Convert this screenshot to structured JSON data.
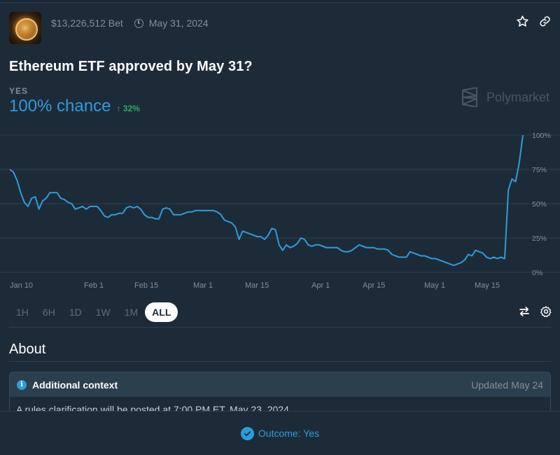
{
  "market": {
    "volume": "$13,226,512 Bet",
    "end_date": "May 31, 2024",
    "title": "Ethereum ETF approved by May 31?",
    "outcome_label": "YES",
    "chance_text": "100% chance",
    "delta_text": "↑ 32%",
    "brand": "Polymarket"
  },
  "chart_data": {
    "type": "line",
    "title": "",
    "xlabel": "",
    "ylabel": "",
    "ylim": [
      0,
      100
    ],
    "y_ticks": [
      "0%",
      "25%",
      "50%",
      "75%",
      "100%"
    ],
    "x_ticks": [
      "Jan 10",
      "Feb 1",
      "Feb 15",
      "Mar 1",
      "Mar 15",
      "Apr 1",
      "Apr 15",
      "May 1",
      "May 15"
    ],
    "grid": true,
    "accent_color": "#2d9cdb",
    "series": [
      {
        "name": "",
        "x": [
          0,
          1,
          2,
          3,
          4,
          5,
          6,
          7,
          8,
          9,
          10,
          11,
          12,
          13,
          14,
          15,
          16,
          17,
          18,
          19,
          20,
          21,
          22,
          23,
          24,
          25,
          26,
          27,
          28,
          29,
          30,
          31,
          32,
          33,
          34,
          35,
          36,
          37,
          38,
          39,
          40,
          41,
          42,
          43,
          44,
          45,
          46,
          47,
          48,
          49,
          50,
          51,
          52,
          53,
          54,
          55,
          56,
          57,
          58,
          59,
          60,
          61,
          62,
          63,
          64,
          65,
          66,
          67,
          68,
          69,
          70,
          71,
          72,
          73,
          74,
          75,
          76,
          77,
          78,
          79,
          80,
          81,
          82,
          83,
          84,
          85,
          86,
          87,
          88,
          89,
          90,
          91,
          92,
          93,
          94,
          95,
          96,
          97,
          98,
          99,
          100,
          101,
          102,
          103,
          104,
          105,
          106,
          107,
          108,
          109,
          110,
          111,
          112,
          113,
          114,
          115,
          116,
          117,
          118,
          119,
          120,
          121,
          122,
          123,
          124,
          125,
          126,
          127,
          128,
          129,
          130,
          131,
          132,
          133,
          134,
          135,
          136,
          137,
          138,
          139,
          140,
          141
        ],
        "values": [
          75,
          73,
          67,
          58,
          51,
          48,
          54,
          55,
          46,
          52,
          54,
          58,
          58,
          58,
          54,
          53,
          51,
          50,
          46,
          47,
          48,
          46,
          48,
          48,
          48,
          45,
          41,
          40,
          42,
          42,
          43,
          43,
          47,
          48,
          47,
          48,
          46,
          42,
          40,
          40,
          39,
          39,
          46,
          47,
          46,
          42,
          42,
          42,
          43,
          44,
          44,
          45,
          45,
          45,
          45,
          45,
          45,
          44,
          42,
          38,
          37,
          36,
          33,
          24,
          30,
          29,
          28,
          27,
          26,
          26,
          24,
          27,
          32,
          31,
          20,
          16,
          20,
          18,
          19,
          21,
          25,
          24,
          20,
          19,
          20,
          20,
          19,
          18,
          18,
          18,
          18,
          16,
          15,
          15,
          16,
          18,
          20,
          19,
          18,
          18,
          18,
          17,
          17,
          17,
          16,
          13,
          12,
          11,
          11,
          11,
          15,
          14,
          13,
          12,
          12,
          11,
          10,
          10,
          9,
          8,
          7,
          6,
          5,
          6,
          7,
          9,
          13,
          12,
          16,
          15,
          14,
          11,
          10,
          11,
          10,
          11,
          10,
          60,
          68,
          66,
          80,
          100
        ]
      }
    ]
  },
  "timeframes": [
    "1H",
    "6H",
    "1D",
    "1W",
    "1M",
    "ALL"
  ],
  "timeframe_active": "ALL",
  "about": {
    "heading": "About",
    "context_label": "Additional context",
    "context_updated": "Updated May 24",
    "context_text": "A rules clarification will be posted at 7:00 PM ET, May 23, 2024"
  },
  "footer": {
    "outcome_text": "Outcome: Yes"
  },
  "icons": {
    "star": "star-icon",
    "link": "link-icon",
    "swap": "swap-arrows-icon",
    "settings": "gear-icon",
    "info": "info-icon",
    "check": "check-circle-icon",
    "clock": "clock-icon"
  }
}
